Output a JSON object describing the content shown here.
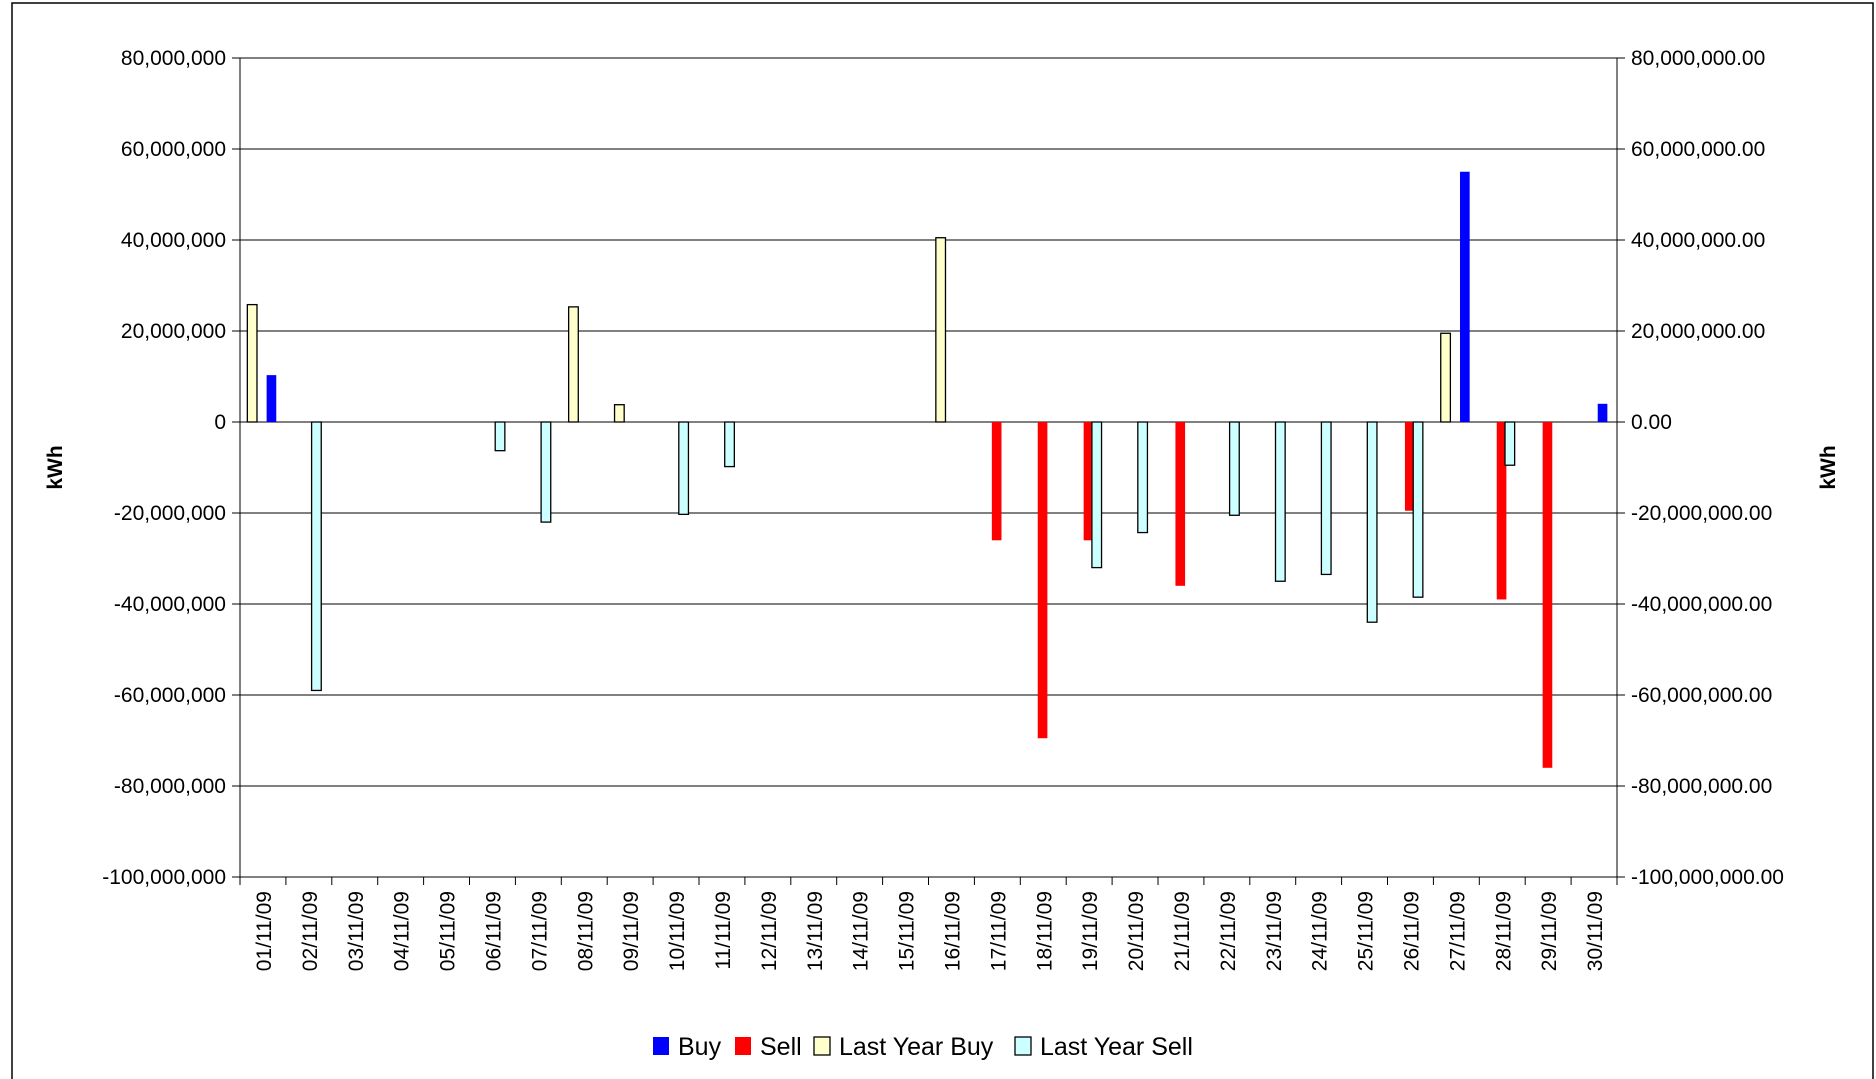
{
  "chart_data": {
    "type": "bar",
    "title": "",
    "xlabel": "",
    "ylabel": "kWh",
    "ylabel_right": "kWh",
    "ylim": [
      -100000000,
      80000000
    ],
    "y_ticks": [
      "80,000,000",
      "60,000,000",
      "40,000,000",
      "20,000,000",
      "0",
      "-20,000,000",
      "-40,000,000",
      "-60,000,000",
      "-80,000,000",
      "-100,000,000"
    ],
    "y_ticks_right": [
      "80,000,000.00",
      "60,000,000.00",
      "40,000,000.00",
      "20,000,000.00",
      "0.00",
      "-20,000,000.00",
      "-40,000,000.00",
      "-60,000,000.00",
      "-80,000,000.00",
      "-100,000,000.00"
    ],
    "grid": true,
    "legend_position": "bottom",
    "categories": [
      "01/11/09",
      "02/11/09",
      "03/11/09",
      "04/11/09",
      "05/11/09",
      "06/11/09",
      "07/11/09",
      "08/11/09",
      "09/11/09",
      "10/11/09",
      "11/11/09",
      "12/11/09",
      "13/11/09",
      "14/11/09",
      "15/11/09",
      "16/11/09",
      "17/11/09",
      "18/11/09",
      "19/11/09",
      "20/11/09",
      "21/11/09",
      "22/11/09",
      "23/11/09",
      "24/11/09",
      "25/11/09",
      "26/11/09",
      "27/11/09",
      "28/11/09",
      "29/11/09",
      "30/11/09"
    ],
    "series": [
      {
        "name": "Buy",
        "color": "#0000ff",
        "values": [
          10300000,
          0,
          0,
          0,
          0,
          0,
          0,
          0,
          0,
          0,
          0,
          0,
          0,
          0,
          0,
          0,
          0,
          0,
          0,
          0,
          0,
          0,
          0,
          0,
          0,
          0,
          55000000,
          0,
          0,
          4000000
        ]
      },
      {
        "name": "Sell",
        "color": "#ff0000",
        "values": [
          0,
          0,
          0,
          0,
          0,
          0,
          0,
          0,
          0,
          0,
          0,
          0,
          0,
          0,
          0,
          0,
          -26000000,
          -69500000,
          -26000000,
          0,
          -36000000,
          0,
          0,
          0,
          0,
          -19500000,
          0,
          -39000000,
          -76000000,
          0
        ]
      },
      {
        "name": "Last Year Buy",
        "color": "#ffffcc",
        "values": [
          25800000,
          0,
          0,
          0,
          0,
          0,
          0,
          25300000,
          3800000,
          0,
          0,
          0,
          0,
          0,
          0,
          40500000,
          0,
          0,
          0,
          0,
          0,
          0,
          0,
          0,
          0,
          0,
          19500000,
          0,
          0,
          0
        ]
      },
      {
        "name": "Last Year Sell",
        "color": "#ccffff",
        "values": [
          0,
          -59000000,
          0,
          0,
          0,
          -6300000,
          -22000000,
          0,
          0,
          -20300000,
          -9800000,
          0,
          0,
          0,
          0,
          0,
          0,
          0,
          -32000000,
          -24300000,
          0,
          -20500000,
          -35000000,
          -33500000,
          -44000000,
          -38500000,
          0,
          -9500000,
          0,
          0
        ]
      }
    ]
  }
}
